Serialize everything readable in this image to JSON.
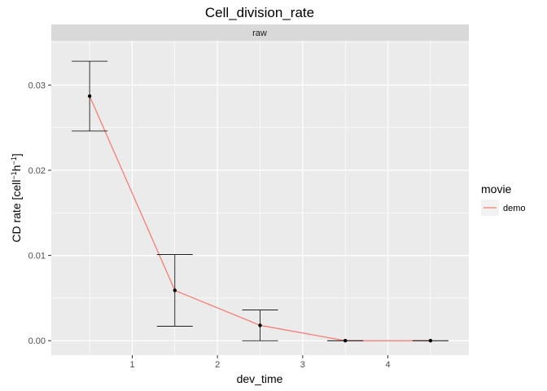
{
  "chart_data": {
    "type": "line",
    "title": "Cell_division_rate",
    "facet_label": "raw",
    "xlabel": "dev_time",
    "ylabel_main": "CD rate [cell",
    "ylabel_sup1": "−1",
    "ylabel_mid": "h",
    "ylabel_sup2": "−1",
    "ylabel_end": "]",
    "xlim": [
      0.05,
      4.95
    ],
    "ylim": [
      -0.0017,
      0.0352
    ],
    "x_ticks": [
      1,
      2,
      3,
      4
    ],
    "x_tick_labels": [
      "1",
      "2",
      "3",
      "4"
    ],
    "y_ticks": [
      0.0,
      0.01,
      0.02,
      0.03
    ],
    "y_tick_labels": [
      "0.00",
      "0.01",
      "0.02",
      "0.03"
    ],
    "grid": true,
    "legend_title": "movie",
    "legend_position": "right",
    "series": [
      {
        "name": "demo",
        "color": "#F8766D",
        "x": [
          0.5,
          1.5,
          2.5,
          3.5,
          4.5
        ],
        "y": [
          0.0287,
          0.0059,
          0.0018,
          0.0,
          0.0
        ],
        "ymin": [
          0.0246,
          0.0017,
          0.0,
          0.0,
          0.0
        ],
        "ymax": [
          0.0328,
          0.0101,
          0.0036,
          0.0,
          0.0
        ]
      }
    ]
  }
}
